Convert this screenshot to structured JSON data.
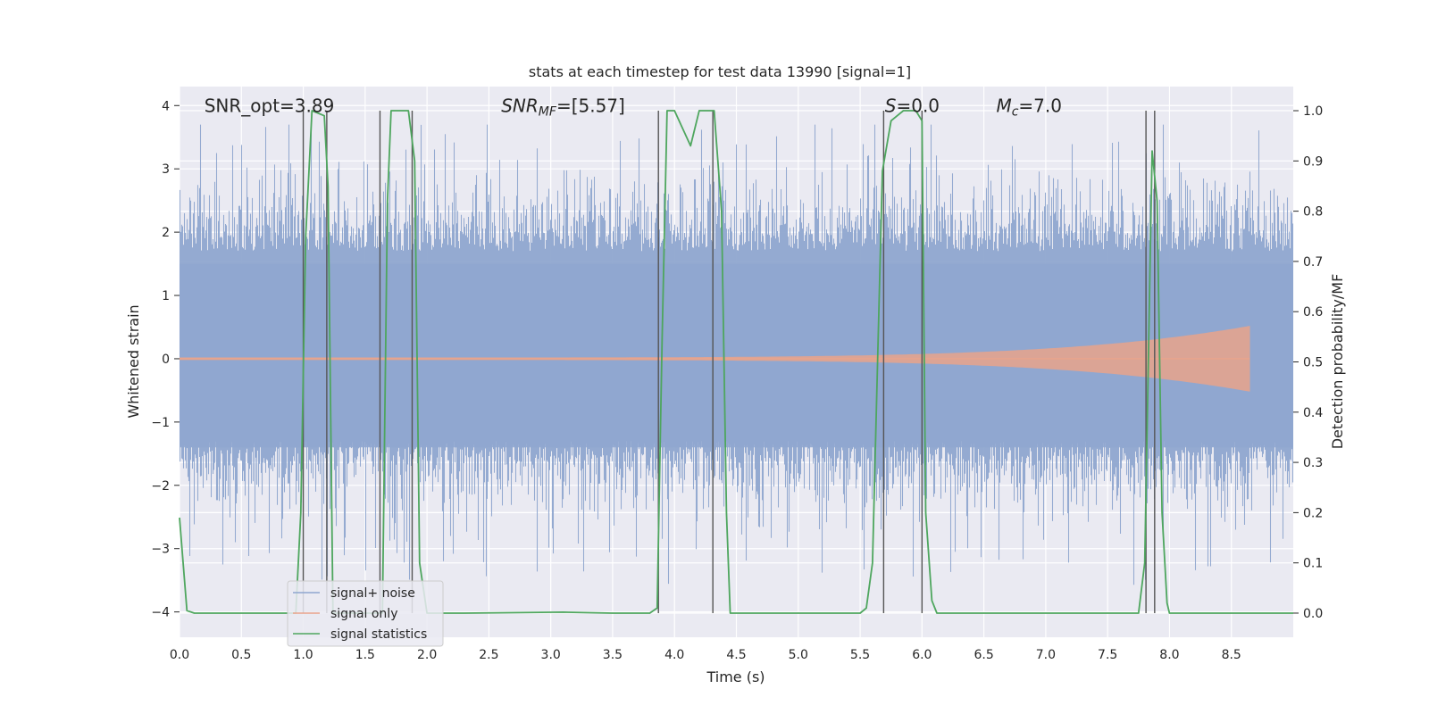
{
  "chart_data": {
    "type": "line",
    "title": "stats at each timestep for test data 13990 [signal=1]",
    "xlabel": "Time (s)",
    "ylabel": "Whitened strain",
    "y2label": "Detection probability/MF",
    "xlim": [
      0.0,
      9.0
    ],
    "ylim": [
      -4.4,
      4.3
    ],
    "y2lim": [
      -0.048,
      1.048
    ],
    "xticks": [
      0.0,
      0.5,
      1.0,
      1.5,
      2.0,
      2.5,
      3.0,
      3.5,
      4.0,
      4.5,
      5.0,
      5.5,
      6.0,
      6.5,
      7.0,
      7.5,
      8.0,
      8.5
    ],
    "xtick_labels": [
      "0.0",
      "0.5",
      "1.0",
      "1.5",
      "2.0",
      "2.5",
      "3.0",
      "3.5",
      "4.0",
      "4.5",
      "5.0",
      "5.5",
      "6.0",
      "6.5",
      "7.0",
      "7.5",
      "8.0",
      "8.5"
    ],
    "yticks": [
      -4,
      -3,
      -2,
      -1,
      0,
      1,
      2,
      3,
      4
    ],
    "ytick_labels": [
      "−4",
      "−3",
      "−2",
      "−1",
      "0",
      "1",
      "2",
      "3",
      "4"
    ],
    "y2ticks": [
      0.0,
      0.1,
      0.2,
      0.3,
      0.4,
      0.5,
      0.6,
      0.7,
      0.8,
      0.9,
      1.0
    ],
    "y2tick_labels": [
      "0.0",
      "0.1",
      "0.2",
      "0.3",
      "0.4",
      "0.5",
      "0.6",
      "0.7",
      "0.8",
      "0.9",
      "1.0"
    ],
    "grid": true,
    "legend_placement": "lower-left",
    "annotations": [
      {
        "text": "SNR_opt=3.89",
        "x": 0.2
      },
      {
        "text": "SNR_MF=[5.57]",
        "x": 2.6
      },
      {
        "text": "S=0.0",
        "x": 5.7
      },
      {
        "text": "M_c=7.0",
        "x": 6.6
      }
    ],
    "annotation_y": 4.0,
    "series": [
      {
        "name": "signal+ noise",
        "color": "#8fa6cf",
        "kind": "noise_band",
        "typical_range": [
          -1.8,
          2.2
        ],
        "extremes": [
          -4.0,
          3.7
        ]
      },
      {
        "name": "signal only",
        "color": "#e9a38b",
        "kind": "chirp",
        "start_x": 0.0,
        "end_x": 8.65,
        "peak_amplitude": 0.5
      },
      {
        "name": "signal statistics",
        "color": "#4ea65e",
        "axis": "right",
        "x": [
          0.0,
          0.06,
          0.12,
          0.94,
          0.98,
          1.02,
          1.07,
          1.17,
          1.2,
          1.24,
          1.64,
          1.68,
          1.71,
          1.85,
          1.9,
          1.94,
          2.0,
          2.3,
          3.1,
          3.5,
          3.8,
          3.86,
          3.9,
          3.94,
          4.0,
          4.13,
          4.2,
          4.27,
          4.32,
          4.38,
          4.42,
          4.45,
          5.5,
          5.55,
          5.6,
          5.68,
          5.75,
          5.85,
          5.95,
          6.0,
          6.03,
          6.08,
          6.12,
          6.2,
          7.75,
          7.8,
          7.86,
          7.9,
          7.94,
          7.98,
          8.0,
          8.4,
          9.0
        ],
        "y": [
          0.19,
          0.005,
          0.0,
          0.0,
          0.2,
          0.75,
          1.0,
          0.99,
          0.85,
          0.0,
          0.0,
          0.82,
          1.0,
          1.0,
          0.9,
          0.1,
          0.0,
          0.0,
          0.002,
          0.0,
          0.0,
          0.01,
          0.55,
          1.0,
          1.0,
          0.93,
          1.0,
          1.0,
          1.0,
          0.8,
          0.2,
          0.0,
          0.0,
          0.01,
          0.1,
          0.88,
          0.98,
          1.0,
          1.0,
          0.98,
          0.2,
          0.025,
          0.0,
          0.0,
          0.0,
          0.1,
          0.92,
          0.82,
          0.2,
          0.02,
          0.0,
          0.0,
          0.0
        ]
      }
    ],
    "vlines": [
      1.0,
      1.19,
      1.62,
      1.88,
      3.87,
      4.31,
      5.69,
      6.0,
      7.81,
      7.88
    ],
    "vline_color": "#555555"
  }
}
